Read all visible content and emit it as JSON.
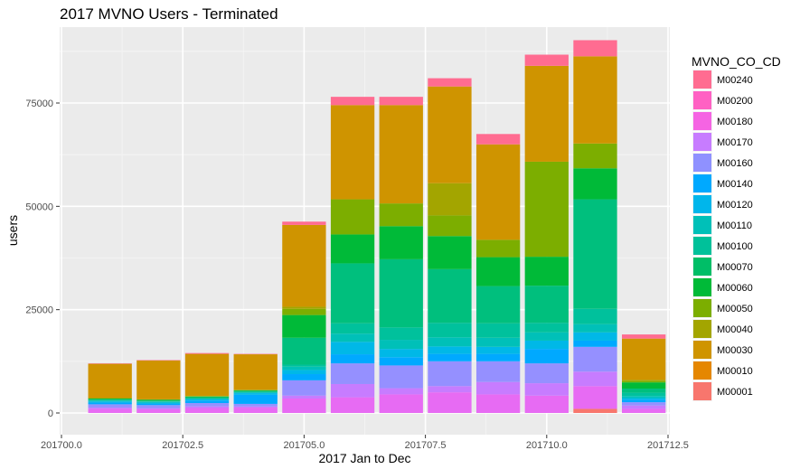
{
  "chart_data": {
    "type": "bar",
    "stacked": true,
    "title": "2017 MVNO Users - Terminated",
    "xlabel": "2017 Jan to Dec",
    "ylabel": "users",
    "xlim": [
      201700,
      201712.5
    ],
    "ylim": [
      0,
      90000
    ],
    "x_ticks": [
      {
        "value": 201700.0,
        "label": "201700.0"
      },
      {
        "value": 201702.5,
        "label": "201702.5"
      },
      {
        "value": 201705.0,
        "label": "201705.0"
      },
      {
        "value": 201707.5,
        "label": "201707.5"
      },
      {
        "value": 201710.0,
        "label": "201710.0"
      },
      {
        "value": 201712.5,
        "label": "201712.5"
      }
    ],
    "y_ticks": [
      {
        "value": 0,
        "label": "0"
      },
      {
        "value": 25000,
        "label": "25000"
      },
      {
        "value": 50000,
        "label": "50000"
      },
      {
        "value": 75000,
        "label": "75000"
      }
    ],
    "grid": true,
    "legend": {
      "title": "MVNO_CO_CD",
      "placement": "right"
    },
    "x": [
      201701,
      201702,
      201703,
      201704,
      201705,
      201706,
      201707,
      201708,
      201709,
      201710,
      201711,
      201712
    ],
    "series": [
      {
        "name": "M00001",
        "color": "#F8766D",
        "values": [
          0,
          0,
          0,
          0,
          0,
          0,
          0,
          0,
          0,
          0,
          1000,
          0
        ]
      },
      {
        "name": "M00010",
        "color": "#E58700",
        "values": [
          0,
          0,
          0,
          0,
          0,
          0,
          0,
          0,
          0,
          0,
          0,
          0
        ]
      },
      {
        "name": "M00240",
        "color": "#FF6C91",
        "values": [
          0,
          0,
          0,
          0,
          0,
          0,
          0,
          0,
          0,
          0,
          0,
          0
        ]
      },
      {
        "name": "M00200",
        "color": "#FF61C3",
        "values": [
          0,
          0,
          0,
          0,
          0,
          0,
          0,
          0,
          0,
          0,
          0,
          0
        ]
      },
      {
        "name": "M00180",
        "color": "#E76BF3",
        "values": [
          1000,
          900,
          1200,
          1300,
          3500,
          3800,
          4500,
          5000,
          4500,
          4200,
          5500,
          1000
        ]
      },
      {
        "name": "M00170",
        "color": "#C77CFF",
        "values": [
          300,
          300,
          400,
          300,
          700,
          3200,
          1500,
          1500,
          3000,
          3000,
          3500,
          800
        ]
      },
      {
        "name": "M00160",
        "color": "#9590FF",
        "values": [
          800,
          700,
          800,
          600,
          3700,
          5000,
          5500,
          6000,
          5000,
          4800,
          6000,
          800
        ]
      },
      {
        "name": "M00140",
        "color": "#00A9FF",
        "values": [
          400,
          300,
          600,
          2200,
          1500,
          2200,
          2000,
          1800,
          1800,
          3500,
          1500,
          600
        ]
      },
      {
        "name": "M00120",
        "color": "#00B8E7",
        "values": [
          300,
          300,
          300,
          400,
          1000,
          3000,
          2000,
          1800,
          1700,
          2000,
          2000,
          400
        ]
      },
      {
        "name": "M00110",
        "color": "#00C0B8",
        "values": [
          200,
          200,
          200,
          200,
          800,
          2000,
          2200,
          2200,
          2200,
          2000,
          2000,
          500
        ]
      },
      {
        "name": "M00100",
        "color": "#00C19C",
        "values": [
          100,
          100,
          100,
          100,
          500,
          2500,
          3000,
          3500,
          3500,
          2300,
          3700,
          800
        ]
      },
      {
        "name": "M00070",
        "color": "#00BF7D",
        "values": [
          200,
          200,
          200,
          200,
          6500,
          14500,
          16500,
          13000,
          9000,
          9000,
          26500,
          1000
        ]
      },
      {
        "name": "M00060",
        "color": "#00BA38",
        "values": [
          200,
          200,
          200,
          200,
          5500,
          7000,
          8000,
          8000,
          7000,
          7000,
          7500,
          1500
        ]
      },
      {
        "name": "M00050",
        "color": "#7CAE00",
        "values": [
          100,
          100,
          100,
          100,
          1500,
          8500,
          5500,
          5000,
          4200,
          23000,
          6000,
          400
        ]
      },
      {
        "name": "M00040",
        "color": "#A3A500",
        "values": [
          0,
          0,
          0,
          0,
          500,
          0,
          0,
          7800,
          0,
          0,
          0,
          200
        ]
      },
      {
        "name": "M00030",
        "color": "#CF9400",
        "values": [
          8300,
          9400,
          10200,
          8600,
          19800,
          22800,
          23800,
          23400,
          23100,
          23200,
          21100,
          10000
        ]
      },
      {
        "name": "M00240",
        "color": "#FF6C91",
        "values": [
          100,
          100,
          200,
          100,
          800,
          2000,
          2000,
          2000,
          2500,
          2700,
          3900,
          1000
        ]
      }
    ],
    "legend_items": [
      {
        "name": "M00240",
        "color": "#FF6C91"
      },
      {
        "name": "M00200",
        "color": "#FF61C3"
      },
      {
        "name": "M00180",
        "color": "#F564E3"
      },
      {
        "name": "M00170",
        "color": "#C77CFF"
      },
      {
        "name": "M00160",
        "color": "#8F91FF"
      },
      {
        "name": "M00140",
        "color": "#00A9FF"
      },
      {
        "name": "M00120",
        "color": "#00B6EB"
      },
      {
        "name": "M00110",
        "color": "#00C0B8"
      },
      {
        "name": "M00100",
        "color": "#00C19A"
      },
      {
        "name": "M00070",
        "color": "#00BE67"
      },
      {
        "name": "M00060",
        "color": "#00BA38"
      },
      {
        "name": "M00050",
        "color": "#7CAE00"
      },
      {
        "name": "M00040",
        "color": "#A3A500"
      },
      {
        "name": "M00030",
        "color": "#CF9400"
      },
      {
        "name": "M00010",
        "color": "#E58700"
      },
      {
        "name": "M00001",
        "color": "#F8766D"
      }
    ]
  }
}
